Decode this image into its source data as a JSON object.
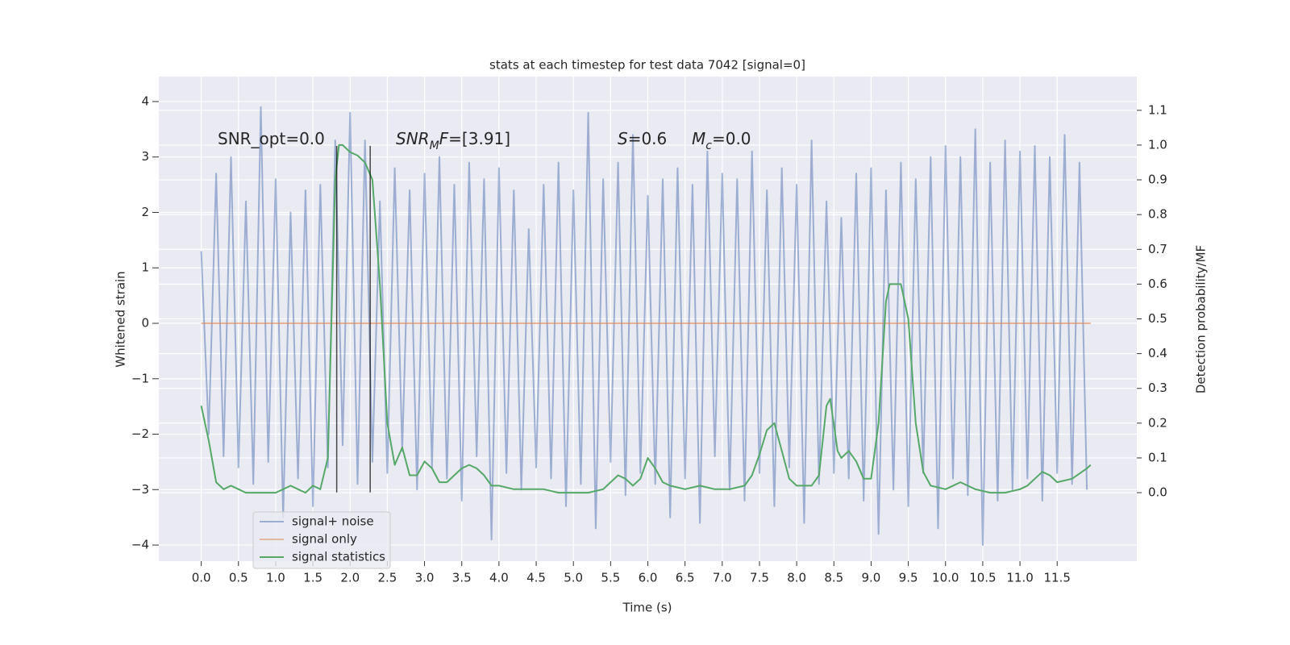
{
  "chart_data": {
    "type": "line",
    "title": "stats at each timestep for test data 7042 [signal=0]",
    "xlabel": "Time (s)",
    "ylabel": "Whitened strain",
    "y2label": "Detection probability/MF",
    "xlim": [
      -0.57,
      12.57
    ],
    "ylim": [
      -4.29,
      4.45
    ],
    "y2lim": [
      -0.197,
      1.197
    ],
    "xticks": [
      {
        "value": 0,
        "label": "0.0"
      },
      0.5,
      {
        "value": 1,
        "label": "1.0"
      },
      1.5,
      {
        "value": 2,
        "label": "2.0"
      },
      2.5,
      {
        "value": 3,
        "label": "3.0"
      },
      3.5,
      {
        "value": 4,
        "label": "4.0"
      },
      4.5,
      {
        "value": 5,
        "label": "5.0"
      },
      5.5,
      {
        "value": 6,
        "label": "6.0"
      },
      6.5,
      {
        "value": 7,
        "label": "7.0"
      },
      7.5,
      {
        "value": 8,
        "label": "8.0"
      },
      8.5,
      {
        "value": 9,
        "label": "9.0"
      },
      9.5,
      {
        "value": 10,
        "label": "10.0"
      },
      10.5,
      {
        "value": 11,
        "label": "11.0"
      },
      11.5
    ],
    "yticks": [
      {
        "value": -4,
        "label": "−4"
      },
      {
        "value": -3,
        "label": "−3"
      },
      {
        "value": -2,
        "label": "−2"
      },
      {
        "value": -1,
        "label": "−1"
      },
      0,
      1,
      2,
      3,
      4
    ],
    "y2ticks": [
      {
        "value": 0,
        "label": "0.0"
      },
      0.1,
      0.2,
      0.3,
      0.4,
      0.5,
      0.6,
      0.7,
      0.8,
      0.9,
      {
        "value": 1,
        "label": "1.0"
      },
      1.1
    ],
    "grid": true,
    "legend": "lower left",
    "series": [
      {
        "name": "signal+ noise",
        "color": "#4c72b0",
        "x": [
          0,
          0.1,
          0.2,
          0.3,
          0.4,
          0.5,
          0.6,
          0.7,
          0.8,
          0.9,
          1,
          1.1,
          1.2,
          1.3,
          1.4,
          1.5,
          1.6,
          1.7,
          1.8,
          1.9,
          2,
          2.1,
          2.2,
          2.3,
          2.4,
          2.5,
          2.6,
          2.7,
          2.8,
          2.9,
          3,
          3.1,
          3.2,
          3.3,
          3.4,
          3.5,
          3.6,
          3.7,
          3.8,
          3.9,
          4,
          4.1,
          4.2,
          4.3,
          4.4,
          4.5,
          4.6,
          4.7,
          4.8,
          4.9,
          5,
          5.1,
          5.2,
          5.3,
          5.4,
          5.5,
          5.6,
          5.7,
          5.8,
          5.9,
          6,
          6.1,
          6.2,
          6.3,
          6.4,
          6.5,
          6.6,
          6.7,
          6.8,
          6.9,
          7,
          7.1,
          7.2,
          7.3,
          7.4,
          7.5,
          7.6,
          7.7,
          7.8,
          7.9,
          8,
          8.1,
          8.2,
          8.3,
          8.4,
          8.5,
          8.6,
          8.7,
          8.8,
          8.9,
          9,
          9.1,
          9.2,
          9.3,
          9.4,
          9.5,
          9.6,
          9.7,
          9.8,
          9.9,
          10,
          10.1,
          10.2,
          10.3,
          10.4,
          10.5,
          10.6,
          10.7,
          10.8,
          10.9,
          11,
          11.1,
          11.2,
          11.3,
          11.4,
          11.5,
          11.6,
          11.7,
          11.8,
          11.9
        ],
        "values": [
          1.3,
          -2.0,
          2.7,
          -2.4,
          3.0,
          -2.6,
          2.2,
          -2.9,
          3.9,
          -2.5,
          2.6,
          -3.5,
          2.0,
          -2.8,
          2.4,
          -3.3,
          2.5,
          -2.6,
          3.3,
          -2.2,
          3.8,
          -2.9,
          3.3,
          -2.5,
          2.2,
          -2.7,
          2.8,
          -2.3,
          2.4,
          -3.0,
          2.7,
          -2.6,
          3.0,
          -2.8,
          2.5,
          -3.2,
          2.9,
          -2.4,
          2.6,
          -3.9,
          2.8,
          -2.7,
          2.4,
          -3.0,
          1.7,
          -2.6,
          2.5,
          -2.8,
          2.9,
          -3.3,
          2.4,
          -2.9,
          3.8,
          -3.7,
          2.6,
          -2.5,
          2.9,
          -3.1,
          3.4,
          -2.7,
          2.3,
          -2.9,
          2.6,
          -3.5,
          2.8,
          -2.8,
          2.5,
          -3.6,
          3.1,
          -2.4,
          2.7,
          -3.0,
          2.6,
          -3.2,
          3.1,
          -2.7,
          2.4,
          -3.3,
          2.8,
          -2.6,
          2.5,
          -3.6,
          3.3,
          -2.9,
          2.2,
          -2.7,
          1.9,
          -2.8,
          2.7,
          -3.2,
          2.8,
          -3.8,
          2.4,
          -3.0,
          2.9,
          -3.3,
          2.6,
          -2.7,
          3.0,
          -3.7,
          3.2,
          -2.8,
          3.0,
          -3.1,
          3.5,
          -4.0,
          2.9,
          -3.2,
          3.3,
          -3.0,
          3.1,
          -2.8,
          3.2,
          -3.2,
          3.0,
          -2.7,
          3.4,
          -2.9,
          2.9,
          -3.0
        ]
      },
      {
        "name": "signal only",
        "color": "#dd8452",
        "x": [
          0,
          11.95
        ],
        "values": [
          0,
          0
        ]
      },
      {
        "name": "signal statistics",
        "color": "#55a868",
        "axis": "y2",
        "x": [
          0,
          0.1,
          0.2,
          0.3,
          0.4,
          0.5,
          0.6,
          0.7,
          0.8,
          0.9,
          1,
          1.1,
          1.2,
          1.3,
          1.4,
          1.5,
          1.6,
          1.7,
          1.8,
          1.85,
          1.9,
          2,
          2.1,
          2.2,
          2.3,
          2.4,
          2.5,
          2.6,
          2.7,
          2.8,
          2.9,
          3,
          3.1,
          3.2,
          3.3,
          3.4,
          3.5,
          3.6,
          3.7,
          3.8,
          3.9,
          4,
          4.2,
          4.4,
          4.6,
          4.8,
          5,
          5.2,
          5.4,
          5.5,
          5.6,
          5.7,
          5.8,
          5.9,
          6,
          6.1,
          6.2,
          6.3,
          6.5,
          6.7,
          6.9,
          7.1,
          7.3,
          7.4,
          7.5,
          7.6,
          7.7,
          7.8,
          7.9,
          8,
          8.2,
          8.3,
          8.4,
          8.45,
          8.55,
          8.6,
          8.7,
          8.8,
          8.9,
          9,
          9.1,
          9.2,
          9.25,
          9.3,
          9.4,
          9.5,
          9.6,
          9.7,
          9.8,
          10,
          10.2,
          10.4,
          10.6,
          10.8,
          11,
          11.1,
          11.2,
          11.3,
          11.4,
          11.5,
          11.7,
          11.9,
          11.95
        ],
        "values": [
          0.25,
          0.15,
          0.03,
          0.01,
          0.02,
          0.01,
          0,
          0,
          0,
          0,
          0,
          0.01,
          0.02,
          0.01,
          0,
          0.02,
          0.01,
          0.1,
          0.9,
          1.0,
          1.0,
          0.98,
          0.97,
          0.95,
          0.9,
          0.6,
          0.2,
          0.08,
          0.13,
          0.05,
          0.05,
          0.09,
          0.07,
          0.03,
          0.03,
          0.05,
          0.07,
          0.08,
          0.07,
          0.05,
          0.02,
          0.02,
          0.01,
          0.01,
          0.01,
          0,
          0,
          0,
          0.01,
          0.03,
          0.05,
          0.04,
          0.02,
          0.04,
          0.1,
          0.07,
          0.03,
          0.02,
          0.01,
          0.02,
          0.01,
          0.01,
          0.02,
          0.05,
          0.11,
          0.18,
          0.2,
          0.12,
          0.04,
          0.02,
          0.02,
          0.05,
          0.25,
          0.27,
          0.12,
          0.1,
          0.12,
          0.09,
          0.04,
          0.04,
          0.2,
          0.55,
          0.6,
          0.6,
          0.6,
          0.5,
          0.2,
          0.06,
          0.02,
          0.01,
          0.03,
          0.01,
          0,
          0,
          0.01,
          0.02,
          0.04,
          0.06,
          0.05,
          0.03,
          0.04,
          0.07,
          0.08
        ]
      }
    ],
    "vlines": [
      {
        "x": 1.82,
        "ymin": -3.05,
        "ymax": 3.2,
        "color": "#000000"
      },
      {
        "x": 2.27,
        "ymin": -3.05,
        "ymax": 3.2,
        "color": "#000000"
      }
    ],
    "annotations": [
      [
        {
          "text": "SNR_opt=0.0"
        }
      ],
      [
        {
          "text": "SNR",
          "italic": true
        },
        {
          "text": "M",
          "italic": true,
          "sub": true
        },
        {
          "text": "F",
          "italic": true
        },
        {
          "text": "=[3.91]"
        }
      ],
      [
        {
          "text": "S",
          "italic": true
        },
        {
          "text": "=0.6"
        }
      ],
      [
        {
          "text": "M",
          "italic": true
        },
        {
          "text": "c",
          "italic": true,
          "sub": true
        },
        {
          "text": "=0.0"
        }
      ]
    ]
  }
}
